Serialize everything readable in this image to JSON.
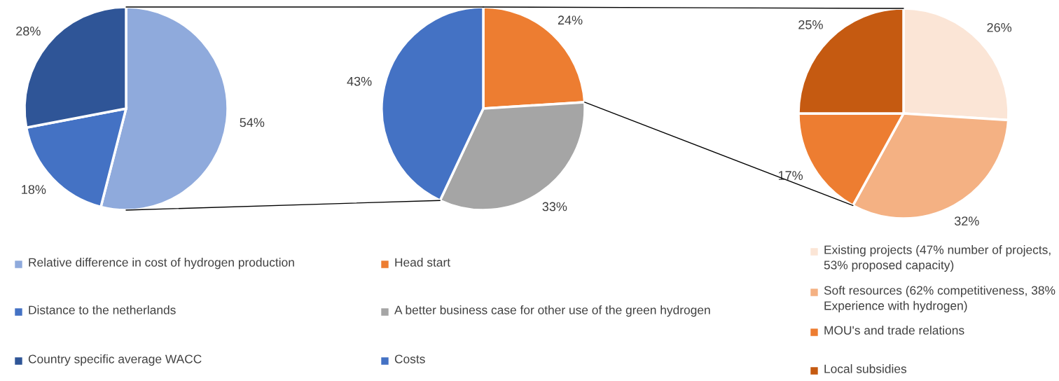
{
  "chart_data": [
    {
      "type": "pie",
      "categories": [
        "Relative difference in cost of hydrogen production",
        "Distance to the netherlands",
        "Country specific average WACC"
      ],
      "values": [
        54,
        18,
        28
      ],
      "value_labels": [
        "54%",
        "18%",
        "28%"
      ],
      "colors": [
        "#8faadc",
        "#4472c4",
        "#2f5597"
      ],
      "legend": "bottom"
    },
    {
      "type": "pie",
      "categories": [
        "Head start",
        "A better business case for other use of the green hydrogen",
        "Costs"
      ],
      "values": [
        24,
        33,
        43
      ],
      "value_labels": [
        "24%",
        "33%",
        "43%"
      ],
      "colors": [
        "#ed7d31",
        "#a5a5a5",
        "#4472c4"
      ],
      "legend": "bottom"
    },
    {
      "type": "pie",
      "categories": [
        "Existing projects (47% number of projects, 53% proposed capacity)",
        "Soft resources (62% competitiveness, 38% Experience with hydrogen)",
        "MOU's and trade relations",
        "Local subsidies"
      ],
      "values": [
        26,
        32,
        17,
        25
      ],
      "value_labels": [
        "26%",
        "32%",
        "17%",
        "25%"
      ],
      "colors": [
        "#fbe5d6",
        "#f4b183",
        "#ed7d31",
        "#c55a11"
      ],
      "legend": "bottom"
    }
  ]
}
